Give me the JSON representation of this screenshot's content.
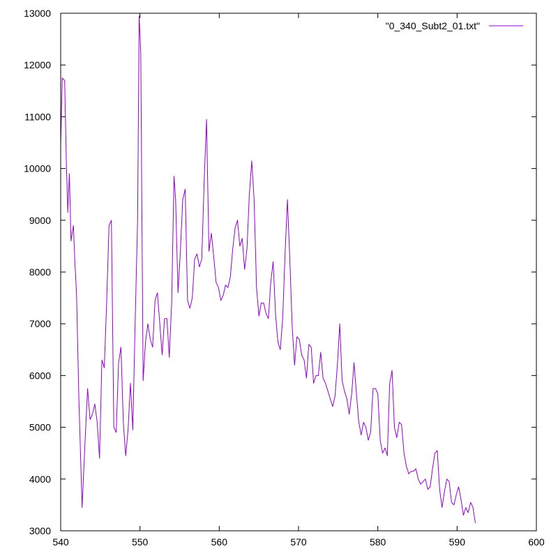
{
  "chart_data": {
    "type": "line",
    "title": "",
    "xlabel": "",
    "ylabel": "",
    "xlim": [
      540,
      600
    ],
    "ylim": [
      3000,
      13000
    ],
    "x_ticks": [
      540,
      550,
      560,
      570,
      580,
      590,
      600
    ],
    "y_ticks": [
      3000,
      4000,
      5000,
      6000,
      7000,
      8000,
      9000,
      10000,
      11000,
      12000,
      13000
    ],
    "grid": false,
    "legend_position": "top-right",
    "series": [
      {
        "name": "\"0_340_Subt2_01.txt\"",
        "color": "#9400d3",
        "points": [
          [
            540.0,
            10450
          ],
          [
            540.2,
            11750
          ],
          [
            540.5,
            11700
          ],
          [
            540.7,
            10200
          ],
          [
            540.9,
            9150
          ],
          [
            541.1,
            9900
          ],
          [
            541.3,
            8600
          ],
          [
            541.6,
            8900
          ],
          [
            541.8,
            8150
          ],
          [
            542.0,
            7600
          ],
          [
            542.3,
            5550
          ],
          [
            542.7,
            3450
          ],
          [
            543.1,
            4800
          ],
          [
            543.4,
            5750
          ],
          [
            543.7,
            5150
          ],
          [
            544.0,
            5250
          ],
          [
            544.3,
            5450
          ],
          [
            544.6,
            5100
          ],
          [
            544.9,
            4400
          ],
          [
            545.2,
            6300
          ],
          [
            545.5,
            6150
          ],
          [
            545.8,
            7400
          ],
          [
            546.1,
            8900
          ],
          [
            546.4,
            9000
          ],
          [
            546.7,
            5000
          ],
          [
            547.0,
            4900
          ],
          [
            547.3,
            6250
          ],
          [
            547.6,
            6550
          ],
          [
            547.9,
            5100
          ],
          [
            548.2,
            4450
          ],
          [
            548.5,
            4950
          ],
          [
            548.8,
            5850
          ],
          [
            549.1,
            4950
          ],
          [
            549.4,
            7050
          ],
          [
            549.7,
            9000
          ],
          [
            549.9,
            12950
          ],
          [
            550.1,
            12250
          ],
          [
            550.4,
            5900
          ],
          [
            550.7,
            6650
          ],
          [
            551.0,
            7000
          ],
          [
            551.3,
            6700
          ],
          [
            551.6,
            6550
          ],
          [
            551.9,
            7450
          ],
          [
            552.2,
            7600
          ],
          [
            552.5,
            7000
          ],
          [
            552.8,
            6400
          ],
          [
            553.1,
            7100
          ],
          [
            553.4,
            7100
          ],
          [
            553.7,
            6350
          ],
          [
            554.0,
            7400
          ],
          [
            554.3,
            9850
          ],
          [
            554.5,
            9400
          ],
          [
            554.8,
            7600
          ],
          [
            555.1,
            8400
          ],
          [
            555.4,
            9400
          ],
          [
            555.7,
            9600
          ],
          [
            556.0,
            7450
          ],
          [
            556.3,
            7300
          ],
          [
            556.6,
            7500
          ],
          [
            556.9,
            8250
          ],
          [
            557.2,
            8350
          ],
          [
            557.5,
            8100
          ],
          [
            557.8,
            8250
          ],
          [
            558.1,
            9750
          ],
          [
            558.4,
            10950
          ],
          [
            558.7,
            8400
          ],
          [
            559.0,
            8750
          ],
          [
            559.3,
            8300
          ],
          [
            559.6,
            7800
          ],
          [
            559.9,
            7700
          ],
          [
            560.2,
            7450
          ],
          [
            560.5,
            7550
          ],
          [
            560.8,
            7750
          ],
          [
            561.1,
            7700
          ],
          [
            561.4,
            7900
          ],
          [
            561.7,
            8450
          ],
          [
            562.0,
            8850
          ],
          [
            562.3,
            9000
          ],
          [
            562.6,
            8500
          ],
          [
            562.9,
            8650
          ],
          [
            563.2,
            8050
          ],
          [
            563.5,
            8450
          ],
          [
            563.8,
            9500
          ],
          [
            564.1,
            10150
          ],
          [
            564.4,
            9400
          ],
          [
            564.7,
            7700
          ],
          [
            565.0,
            7150
          ],
          [
            565.3,
            7400
          ],
          [
            565.6,
            7400
          ],
          [
            565.9,
            7200
          ],
          [
            566.2,
            7100
          ],
          [
            566.5,
            7800
          ],
          [
            566.8,
            8200
          ],
          [
            567.1,
            7200
          ],
          [
            567.4,
            6650
          ],
          [
            567.7,
            6500
          ],
          [
            568.0,
            7100
          ],
          [
            568.3,
            8350
          ],
          [
            568.6,
            9400
          ],
          [
            568.9,
            8250
          ],
          [
            569.2,
            6950
          ],
          [
            569.5,
            6200
          ],
          [
            569.8,
            6750
          ],
          [
            570.1,
            6700
          ],
          [
            570.4,
            6400
          ],
          [
            570.7,
            6300
          ],
          [
            571.0,
            5950
          ],
          [
            571.3,
            6600
          ],
          [
            571.6,
            6550
          ],
          [
            571.9,
            5850
          ],
          [
            572.2,
            6000
          ],
          [
            572.5,
            6000
          ],
          [
            572.8,
            6450
          ],
          [
            573.1,
            5950
          ],
          [
            573.4,
            5850
          ],
          [
            573.7,
            5700
          ],
          [
            574.0,
            5550
          ],
          [
            574.3,
            5400
          ],
          [
            574.6,
            5600
          ],
          [
            574.9,
            6200
          ],
          [
            575.2,
            7000
          ],
          [
            575.5,
            5900
          ],
          [
            575.8,
            5700
          ],
          [
            576.1,
            5550
          ],
          [
            576.4,
            5250
          ],
          [
            576.7,
            5650
          ],
          [
            577.0,
            6250
          ],
          [
            577.3,
            5650
          ],
          [
            577.6,
            5100
          ],
          [
            577.9,
            4850
          ],
          [
            578.2,
            5100
          ],
          [
            578.5,
            5000
          ],
          [
            578.8,
            4750
          ],
          [
            579.1,
            4900
          ],
          [
            579.4,
            5750
          ],
          [
            579.7,
            5750
          ],
          [
            580.0,
            5650
          ],
          [
            580.3,
            4750
          ],
          [
            580.6,
            4500
          ],
          [
            580.9,
            4600
          ],
          [
            581.2,
            4450
          ],
          [
            581.5,
            5850
          ],
          [
            581.8,
            6100
          ],
          [
            582.1,
            5000
          ],
          [
            582.4,
            4800
          ],
          [
            582.7,
            5100
          ],
          [
            583.0,
            5050
          ],
          [
            583.3,
            4500
          ],
          [
            583.6,
            4250
          ],
          [
            583.9,
            4100
          ],
          [
            584.2,
            4150
          ],
          [
            584.5,
            4150
          ],
          [
            584.8,
            4200
          ],
          [
            585.1,
            4000
          ],
          [
            585.4,
            3900
          ],
          [
            585.7,
            3950
          ],
          [
            586.0,
            4000
          ],
          [
            586.3,
            3800
          ],
          [
            586.6,
            3850
          ],
          [
            586.9,
            4200
          ],
          [
            587.2,
            4500
          ],
          [
            587.5,
            4550
          ],
          [
            587.8,
            3800
          ],
          [
            588.1,
            3450
          ],
          [
            588.4,
            3750
          ],
          [
            588.7,
            4000
          ],
          [
            589.0,
            3950
          ],
          [
            589.3,
            3550
          ],
          [
            589.6,
            3500
          ],
          [
            589.9,
            3700
          ],
          [
            590.2,
            3850
          ],
          [
            590.5,
            3600
          ],
          [
            590.8,
            3300
          ],
          [
            591.1,
            3450
          ],
          [
            591.4,
            3350
          ],
          [
            591.7,
            3550
          ],
          [
            592.0,
            3450
          ],
          [
            592.3,
            3150
          ]
        ]
      }
    ]
  }
}
